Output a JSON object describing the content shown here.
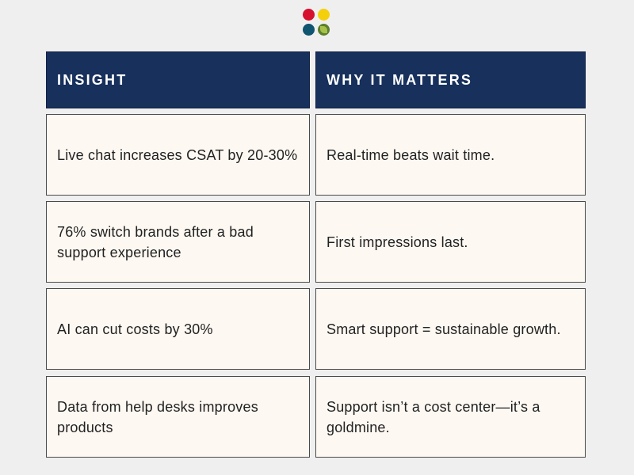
{
  "logo": {
    "name": "four-dots-logo",
    "colors": [
      "#d6112f",
      "#f4d00c",
      "#0f5470",
      "#5b7f2c"
    ]
  },
  "table": {
    "headers": [
      "INSIGHT",
      "WHY IT MATTERS"
    ],
    "rows": [
      [
        "Live chat increases CSAT by 20-30%",
        "Real-time beats wait time."
      ],
      [
        "76% switch brands after a bad support experience",
        "First impressions last."
      ],
      [
        "AI can cut costs by 30%",
        "Smart support = sustainable growth."
      ],
      [
        "Data from help desks improves products",
        "Support isn’t a cost center—it’s a goldmine."
      ]
    ]
  },
  "colors": {
    "header_bg": "#17305c",
    "cell_bg": "#fdf8f2",
    "page_bg": "#efefef"
  }
}
